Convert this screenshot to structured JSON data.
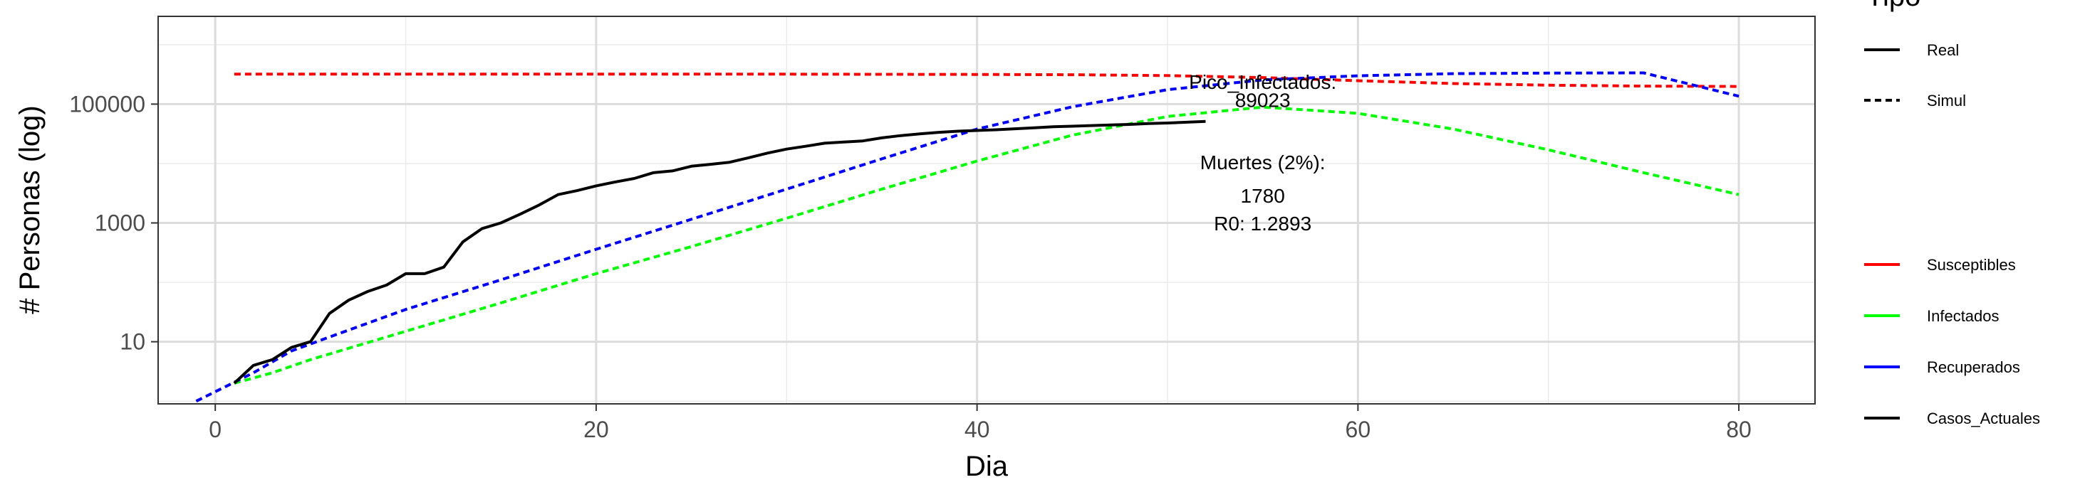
{
  "chart_data": {
    "type": "line",
    "xlabel": "Dia",
    "ylabel": "# Personas (log)",
    "yscale": "log10",
    "xlim": [
      -3,
      84
    ],
    "ylim": [
      0.9,
      3000000
    ],
    "xticks": [
      0,
      20,
      40,
      60,
      80
    ],
    "yticks": [
      10,
      1000,
      100000
    ],
    "ytick_labels": [
      "10",
      "1000",
      "100000"
    ],
    "grid": true,
    "legend": {
      "placement": "right",
      "linetype_title": "Tipo",
      "linetypes": [
        {
          "label": "Real",
          "dash": "solid"
        },
        {
          "label": "Simul",
          "dash": "dotted"
        }
      ],
      "colors": [
        {
          "label": "Susceptibles",
          "color": "#ff0000"
        },
        {
          "label": "Infectados",
          "color": "#00ff00"
        },
        {
          "label": "Recuperados",
          "color": "#0000ff"
        },
        {
          "label": "Casos_Actuales",
          "color": "#000000"
        }
      ]
    },
    "annotations": [
      {
        "text": "Pico_Infectados:",
        "x": 55,
        "y": 180000
      },
      {
        "text": "89023",
        "x": 55,
        "y": 89023
      },
      {
        "text": "Muertes (2%):",
        "x": 55,
        "y": 8000
      },
      {
        "text": "1780",
        "x": 55,
        "y": 2200
      },
      {
        "text": "R0: 1.2893",
        "x": 55,
        "y": 750
      }
    ],
    "series": [
      {
        "name": "Susceptibles",
        "color": "#ff0000",
        "dash": "dotted",
        "x": [
          1,
          10,
          20,
          30,
          40,
          45,
          50,
          55,
          60,
          65,
          70,
          75,
          80
        ],
        "y": [
          320000,
          320000,
          320000,
          319000,
          316000,
          312000,
          302000,
          280000,
          248000,
          222000,
          208000,
          201000,
          198000
        ]
      },
      {
        "name": "Infectados",
        "color": "#00ff00",
        "dash": "dotted",
        "x": [
          1,
          3,
          5,
          10,
          15,
          20,
          25,
          30,
          35,
          40,
          45,
          50,
          55,
          60,
          65,
          70,
          75,
          80
        ],
        "y": [
          2,
          3,
          5,
          15,
          45,
          140,
          400,
          1200,
          3700,
          11000,
          30000,
          62000,
          89000,
          70000,
          38000,
          17000,
          7000,
          3000
        ]
      },
      {
        "name": "Recuperados",
        "color": "#0000ff",
        "dash": "dotted",
        "x": [
          -1,
          2,
          4,
          6,
          10,
          15,
          20,
          25,
          30,
          35,
          40,
          45,
          50,
          55,
          60,
          65,
          70,
          75,
          80
        ],
        "y": [
          1,
          3,
          7,
          12,
          35,
          110,
          360,
          1150,
          3700,
          12000,
          38000,
          90000,
          175000,
          255000,
          300000,
          325000,
          333000,
          335000,
          136000
        ]
      },
      {
        "name": "Casos_Actuales",
        "color": "#000000",
        "dash": "solid",
        "x": [
          1,
          2,
          3,
          4,
          5,
          6,
          7,
          8,
          9,
          10,
          11,
          12,
          13,
          14,
          15,
          16,
          17,
          18,
          19,
          20,
          21,
          22,
          23,
          24,
          25,
          26,
          27,
          28,
          29,
          30,
          31,
          32,
          33,
          34,
          35,
          36,
          37,
          38,
          39,
          40,
          41,
          42,
          43,
          44,
          45,
          46,
          47,
          48,
          49,
          50,
          51,
          52
        ],
        "y": [
          2,
          4,
          5,
          8,
          10,
          30,
          50,
          70,
          90,
          140,
          140,
          180,
          480,
          800,
          1000,
          1400,
          2000,
          3000,
          3500,
          4200,
          4900,
          5600,
          7000,
          7500,
          9000,
          9700,
          10500,
          12500,
          15000,
          17500,
          19500,
          22000,
          23000,
          24000,
          27000,
          29500,
          31500,
          33500,
          35000,
          36000,
          37000,
          38500,
          40000,
          41500,
          42500,
          43500,
          44500,
          45500,
          47000,
          48000,
          49500,
          51000
        ]
      }
    ]
  }
}
